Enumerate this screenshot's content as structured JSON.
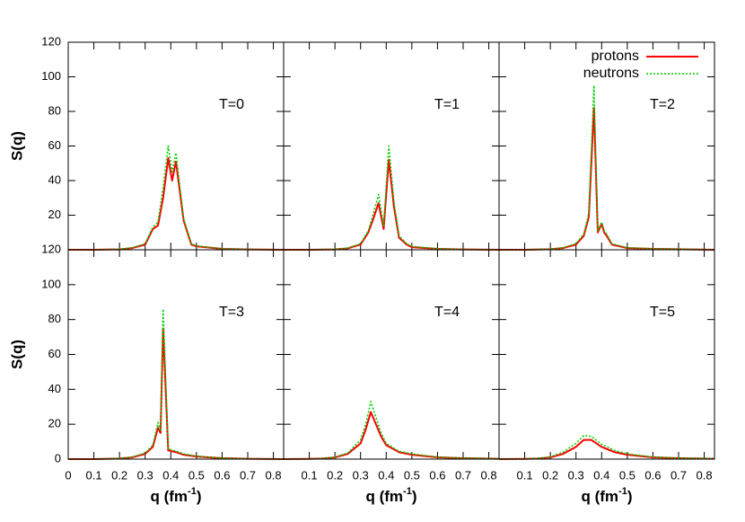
{
  "chart_data": [
    {
      "type": "line",
      "annotation": "T=0",
      "ylabel": "S(q)",
      "x": [
        0,
        0.1,
        0.2,
        0.25,
        0.3,
        0.33,
        0.35,
        0.37,
        0.39,
        0.405,
        0.42,
        0.45,
        0.48,
        0.5,
        0.6,
        0.7,
        0.84
      ],
      "series": [
        {
          "color": "#ff0000",
          "dashed": false,
          "values": [
            0,
            0,
            0.2,
            1,
            3,
            12,
            14,
            30,
            53,
            40,
            51,
            17,
            3,
            2,
            0.5,
            0.2,
            0
          ]
        },
        {
          "color": "#00cc00",
          "dashed": true,
          "values": [
            0,
            0,
            0.3,
            1.2,
            3.5,
            13,
            16,
            36,
            60,
            45,
            56,
            18,
            3.5,
            2.2,
            0.6,
            0.2,
            0
          ]
        }
      ],
      "xlim": [
        0,
        0.84
      ],
      "ylim": [
        0,
        120
      ],
      "xticks": [
        0,
        0.1,
        0.2,
        0.3,
        0.4,
        0.5,
        0.6,
        0.7,
        0.8
      ],
      "yticks": [
        20,
        40,
        60,
        80,
        100,
        120
      ],
      "show_xticklabels": false,
      "show_yticklabels": true
    },
    {
      "type": "line",
      "annotation": "T=1",
      "x": [
        0,
        0.1,
        0.2,
        0.25,
        0.3,
        0.33,
        0.35,
        0.37,
        0.39,
        0.41,
        0.43,
        0.45,
        0.48,
        0.5,
        0.6,
        0.7,
        0.84
      ],
      "series": [
        {
          "color": "#ff0000",
          "dashed": false,
          "values": [
            0,
            0,
            0.2,
            0.8,
            3,
            10,
            18,
            27,
            12,
            52,
            25,
            7,
            3,
            1.5,
            0.5,
            0.2,
            0
          ]
        },
        {
          "color": "#00cc00",
          "dashed": true,
          "values": [
            0,
            0,
            0.3,
            1,
            3.5,
            11,
            21,
            32,
            14,
            60,
            28,
            8,
            3.5,
            2,
            0.6,
            0.2,
            0
          ]
        }
      ],
      "xlim": [
        0,
        0.84
      ],
      "ylim": [
        0,
        120
      ],
      "xticks": [
        0,
        0.1,
        0.2,
        0.3,
        0.4,
        0.5,
        0.6,
        0.7,
        0.8
      ],
      "yticks": [
        0,
        20,
        40,
        60,
        80,
        100,
        120
      ],
      "show_xticklabels": false,
      "show_yticklabels": false
    },
    {
      "type": "line",
      "annotation": "T=2",
      "x": [
        0,
        0.1,
        0.2,
        0.25,
        0.3,
        0.33,
        0.35,
        0.37,
        0.385,
        0.4,
        0.41,
        0.42,
        0.44,
        0.5,
        0.6,
        0.7,
        0.84
      ],
      "series": [
        {
          "name": "protons",
          "color": "#ff0000",
          "dashed": false,
          "values": [
            0,
            0,
            0.3,
            1,
            3,
            8,
            19,
            82,
            10,
            15,
            10,
            8,
            3,
            1,
            0.5,
            0.3,
            0
          ]
        },
        {
          "name": "neutrons",
          "color": "#00cc00",
          "dashed": true,
          "values": [
            0,
            0,
            0.4,
            1.2,
            3.5,
            9,
            21,
            95,
            11,
            16,
            11,
            9,
            3.5,
            1.2,
            0.6,
            0.4,
            0
          ]
        }
      ],
      "xlim": [
        0,
        0.84
      ],
      "ylim": [
        0,
        120
      ],
      "xticks": [
        0,
        0.1,
        0.2,
        0.3,
        0.4,
        0.5,
        0.6,
        0.7,
        0.8
      ],
      "yticks": [
        0,
        20,
        40,
        60,
        80,
        100,
        120
      ],
      "show_xticklabels": false,
      "show_yticklabels": false,
      "legend": "top-right"
    },
    {
      "type": "line",
      "annotation": "T=3",
      "ylabel": "S(q)",
      "xlabel": [
        "q (fm",
        "-1",
        ")"
      ],
      "x": [
        0,
        0.1,
        0.2,
        0.25,
        0.3,
        0.33,
        0.35,
        0.36,
        0.37,
        0.39,
        0.42,
        0.45,
        0.5,
        0.6,
        0.7,
        0.84
      ],
      "series": [
        {
          "color": "#ff0000",
          "dashed": false,
          "values": [
            0,
            0,
            0.3,
            1,
            3,
            7,
            18,
            15,
            75,
            5,
            4,
            2.5,
            1.5,
            0.5,
            0.2,
            0
          ]
        },
        {
          "color": "#00cc00",
          "dashed": true,
          "values": [
            0,
            0,
            0.4,
            1.2,
            3.5,
            8,
            21,
            16,
            86,
            6,
            4.5,
            3,
            1.7,
            0.6,
            0.2,
            0
          ]
        }
      ],
      "xlim": [
        0,
        0.84
      ],
      "ylim": [
        0,
        120
      ],
      "xticks": [
        0,
        0.1,
        0.2,
        0.3,
        0.4,
        0.5,
        0.6,
        0.7,
        0.8
      ],
      "yticks": [
        0,
        20,
        40,
        60,
        80,
        100,
        120
      ],
      "show_xticklabels": true,
      "show_yticklabels": true
    },
    {
      "type": "line",
      "annotation": "T=4",
      "xlabel": [
        "q (fm",
        "-1",
        ")"
      ],
      "x": [
        0,
        0.1,
        0.15,
        0.2,
        0.25,
        0.3,
        0.32,
        0.34,
        0.36,
        0.38,
        0.4,
        0.45,
        0.5,
        0.6,
        0.7,
        0.84
      ],
      "series": [
        {
          "color": "#ff0000",
          "dashed": false,
          "values": [
            0,
            0.1,
            0.3,
            1,
            3,
            9,
            17,
            27,
            20,
            13,
            8,
            4,
            2.5,
            1,
            0.5,
            0.2
          ]
        },
        {
          "color": "#00cc00",
          "dashed": true,
          "values": [
            0,
            0.1,
            0.3,
            1.2,
            3.5,
            11,
            20,
            33,
            24,
            15,
            9,
            4.5,
            3,
            1.2,
            0.6,
            0.2
          ]
        }
      ],
      "xlim": [
        0,
        0.84
      ],
      "ylim": [
        0,
        120
      ],
      "xticks": [
        0.1,
        0.2,
        0.3,
        0.4,
        0.5,
        0.6,
        0.7,
        0.8
      ],
      "yticks": [
        0,
        20,
        40,
        60,
        80,
        100,
        120
      ],
      "show_xticklabels": true,
      "show_yticklabels": false
    },
    {
      "type": "line",
      "annotation": "T=5",
      "xlabel": [
        "q (fm",
        "-1",
        ")"
      ],
      "x": [
        0,
        0.1,
        0.15,
        0.2,
        0.25,
        0.3,
        0.33,
        0.36,
        0.4,
        0.45,
        0.5,
        0.6,
        0.7,
        0.84
      ],
      "series": [
        {
          "color": "#ff0000",
          "dashed": false,
          "values": [
            0,
            0.1,
            0.3,
            1,
            3,
            7,
            11,
            11,
            7,
            4,
            2.5,
            1,
            0.5,
            0.2
          ]
        },
        {
          "color": "#00cc00",
          "dashed": true,
          "values": [
            0,
            0.1,
            0.4,
            1.3,
            4,
            9,
            13.5,
            13,
            8.5,
            5,
            3,
            1.2,
            0.6,
            0.3
          ]
        }
      ],
      "xlim": [
        0,
        0.84
      ],
      "ylim": [
        0,
        120
      ],
      "xticks": [
        0.1,
        0.2,
        0.3,
        0.4,
        0.5,
        0.6,
        0.7,
        0.8
      ],
      "yticks": [
        0,
        20,
        40,
        60,
        80,
        100,
        120
      ],
      "show_xticklabels": true,
      "show_yticklabels": false
    }
  ]
}
